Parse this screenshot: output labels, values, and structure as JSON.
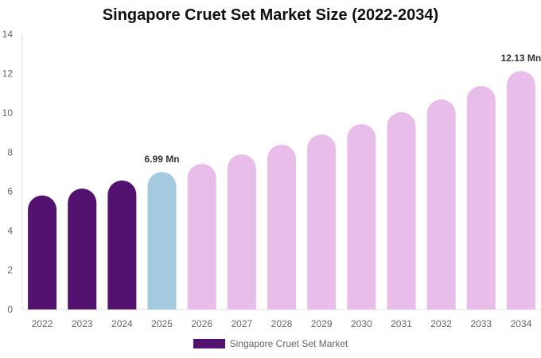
{
  "chart_data": {
    "type": "bar",
    "title": "Singapore Cruet Set Market Size (2022-2034)",
    "categories": [
      "2022",
      "2023",
      "2024",
      "2025",
      "2026",
      "2027",
      "2028",
      "2029",
      "2030",
      "2031",
      "2032",
      "2033",
      "2034"
    ],
    "series": [
      {
        "name": "Singapore Cruet Set Market",
        "values": [
          5.8,
          6.15,
          6.56,
          6.99,
          7.41,
          7.89,
          8.38,
          8.9,
          9.43,
          10.04,
          10.68,
          11.37,
          12.13
        ]
      }
    ],
    "data_labels": [
      {
        "category": "2025",
        "text": "6.99 Mn"
      },
      {
        "category": "2034",
        "text": "12.13 Mn"
      }
    ],
    "ylim": [
      0,
      14
    ],
    "yticks": [
      0,
      2,
      4,
      6,
      8,
      10,
      12,
      14
    ],
    "grid": false,
    "legend_position": "bottom",
    "colors": {
      "historical": "#541270",
      "current": "#a3cadf",
      "forecast": "#e8bde9"
    }
  }
}
